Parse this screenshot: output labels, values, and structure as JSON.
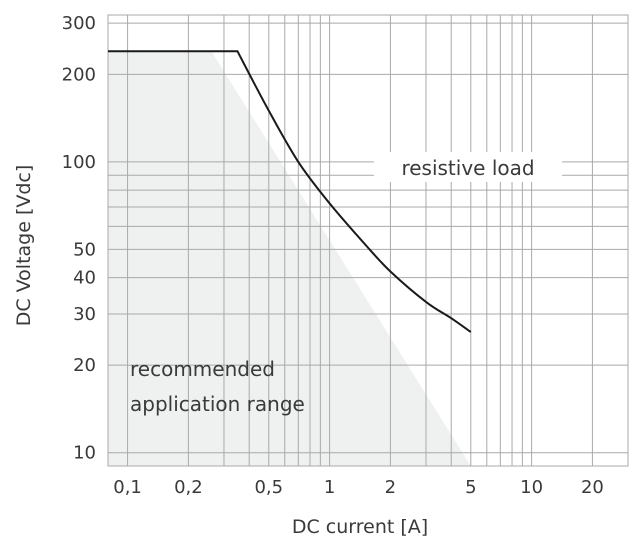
{
  "chart_data": {
    "type": "line",
    "xlabel": "DC current [A]",
    "ylabel": "DC Voltage [Vdc]",
    "x_scale": "log",
    "y_scale": "log",
    "xlim": [
      0.08,
      30
    ],
    "ylim": [
      9,
      320
    ],
    "grid": true,
    "x_ticks": [
      {
        "value": 0.1,
        "label": "0,1"
      },
      {
        "value": 0.2,
        "label": "0,2"
      },
      {
        "value": 0.5,
        "label": "0,5"
      },
      {
        "value": 1,
        "label": "1"
      },
      {
        "value": 2,
        "label": "2"
      },
      {
        "value": 5,
        "label": "5"
      },
      {
        "value": 10,
        "label": "10"
      },
      {
        "value": 20,
        "label": "20"
      }
    ],
    "y_ticks": [
      {
        "value": 10,
        "label": "10"
      },
      {
        "value": 20,
        "label": "20"
      },
      {
        "value": 30,
        "label": "30"
      },
      {
        "value": 40,
        "label": "40"
      },
      {
        "value": 50,
        "label": "50"
      },
      {
        "value": 100,
        "label": "100"
      },
      {
        "value": 200,
        "label": "200"
      },
      {
        "value": 300,
        "label": "300"
      }
    ],
    "x_grid": [
      0.1,
      0.2,
      0.3,
      0.4,
      0.5,
      0.6,
      0.7,
      0.8,
      0.9,
      1,
      2,
      3,
      4,
      5,
      6,
      7,
      8,
      9,
      10,
      20,
      30
    ],
    "y_grid": [
      10,
      20,
      30,
      40,
      50,
      60,
      70,
      80,
      90,
      100,
      200,
      300
    ],
    "series": [
      {
        "label": "resistive load",
        "color": "#1a1a1a",
        "points": [
          {
            "x": 0.08,
            "y": 240
          },
          {
            "x": 0.35,
            "y": 240
          },
          {
            "x": 0.5,
            "y": 150
          },
          {
            "x": 0.7,
            "y": 100
          },
          {
            "x": 1,
            "y": 72
          },
          {
            "x": 1.5,
            "y": 52
          },
          {
            "x": 2,
            "y": 42
          },
          {
            "x": 3,
            "y": 33
          },
          {
            "x": 4,
            "y": 29
          },
          {
            "x": 5,
            "y": 26
          }
        ]
      }
    ],
    "shaded_region": {
      "label": "recommended application range",
      "color": "#eef1ef",
      "points": [
        {
          "x": 0.08,
          "y": 240
        },
        {
          "x": 0.26,
          "y": 240
        },
        {
          "x": 5,
          "y": 9
        },
        {
          "x": 0.08,
          "y": 9
        }
      ]
    },
    "annotations": {
      "resistive": "resistive load",
      "range_line1": "recommended",
      "range_line2": "application range"
    }
  }
}
